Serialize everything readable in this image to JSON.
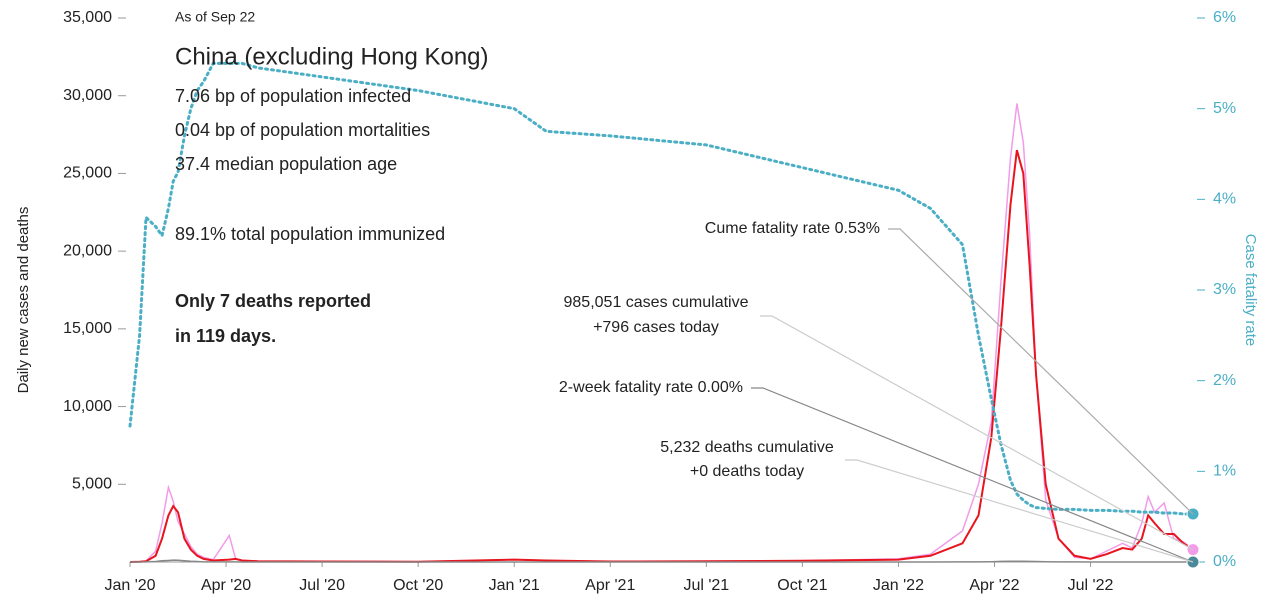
{
  "chart_data": {
    "type": "line",
    "y_label": "Daily new cases and deaths",
    "y2_label": "Case fatality rate",
    "annotations": [
      "As of Sep 22",
      "China (excluding Hong Kong)",
      "7.06 bp of population infected",
      "0.04 bp of population mortalities",
      "37.4 median population age",
      "89.1% total population immunized",
      "Only 7 deaths reported",
      "in 119 days."
    ],
    "callouts": [
      "Cume fatality rate 0.53%",
      "985,051 cases cumulative",
      "+796 cases today",
      "2-week fatality rate 0.00%",
      "5,232 deaths cumulative",
      "+0 deaths today"
    ],
    "xlim": [
      0,
      33.2
    ],
    "xticks": [
      {
        "value": 0,
        "label": "Jan '20"
      },
      {
        "value": 3,
        "label": "Apr '20"
      },
      {
        "value": 6,
        "label": "Jul '20"
      },
      {
        "value": 9,
        "label": "Oct '20"
      },
      {
        "value": 12,
        "label": "Jan '21"
      },
      {
        "value": 15,
        "label": "Apr '21"
      },
      {
        "value": 18,
        "label": "Jul '21"
      },
      {
        "value": 21,
        "label": "Oct '21"
      },
      {
        "value": 24,
        "label": "Jan '22"
      },
      {
        "value": 27,
        "label": "Apr '22"
      },
      {
        "value": 30,
        "label": "Jul '22"
      }
    ],
    "ylim": [
      0,
      35000
    ],
    "yticks": [
      {
        "value": 5000,
        "label": "5,000"
      },
      {
        "value": 10000,
        "label": "10,000"
      },
      {
        "value": 15000,
        "label": "15,000"
      },
      {
        "value": 20000,
        "label": "20,000"
      },
      {
        "value": 25000,
        "label": "25,000"
      },
      {
        "value": 30000,
        "label": "30,000"
      },
      {
        "value": 35000,
        "label": "35,000"
      }
    ],
    "y2lim": [
      0,
      6
    ],
    "y2ticks": [
      {
        "value": 0,
        "label": "0%"
      },
      {
        "value": 1,
        "label": "1%"
      },
      {
        "value": 2,
        "label": "2%"
      },
      {
        "value": 3,
        "label": "3%"
      },
      {
        "value": 4,
        "label": "4%"
      },
      {
        "value": 5,
        "label": "5%"
      },
      {
        "value": 6,
        "label": "6%"
      }
    ],
    "x": [
      0,
      0.3,
      0.5,
      0.8,
      1.0,
      1.2,
      1.35,
      1.5,
      1.7,
      1.9,
      2.1,
      2.3,
      2.6,
      3.1,
      3.3,
      3.5,
      4,
      6,
      9,
      12,
      13,
      15,
      18,
      21,
      24,
      25,
      26,
      26.5,
      26.9,
      27.2,
      27.5,
      27.7,
      27.9,
      28.1,
      28.3,
      28.6,
      29,
      29.5,
      30,
      30.5,
      31,
      31.3,
      31.6,
      31.8,
      32,
      32.3,
      32.6,
      32.9,
      33.2
    ],
    "series": [
      {
        "color": "#f29be8",
        "values": [
          0,
          20,
          60,
          700,
          2500,
          4800,
          3900,
          2600,
          1800,
          1000,
          500,
          300,
          150,
          1700,
          200,
          100,
          50,
          30,
          20,
          150,
          100,
          30,
          50,
          80,
          200,
          500,
          2000,
          5000,
          9000,
          18000,
          26000,
          29500,
          27000,
          21000,
          12000,
          4000,
          1500,
          300,
          200,
          700,
          1200,
          900,
          2500,
          4200,
          3200,
          3800,
          1500,
          1300,
          796
        ]
      },
      {
        "color": "#e8141e",
        "values": [
          0,
          20,
          50,
          400,
          1500,
          3000,
          3600,
          3200,
          1500,
          800,
          400,
          200,
          100,
          150,
          200,
          100,
          50,
          30,
          20,
          150,
          100,
          30,
          50,
          80,
          150,
          400,
          1200,
          3000,
          8000,
          15000,
          23000,
          26500,
          25000,
          19000,
          12000,
          5000,
          1500,
          400,
          200,
          500,
          900,
          800,
          1500,
          3000,
          2500,
          1800,
          1800,
          1200,
          796
        ]
      },
      {
        "color": "#888888",
        "values": [
          0,
          0,
          5,
          30,
          80,
          100,
          120,
          110,
          80,
          50,
          30,
          10,
          5,
          5,
          5,
          2,
          1,
          1,
          1,
          1,
          1,
          1,
          1,
          1,
          1,
          1,
          5,
          10,
          20,
          40,
          50,
          50,
          45,
          40,
          30,
          20,
          10,
          5,
          1,
          1,
          1,
          1,
          1,
          1,
          1,
          1,
          0,
          0,
          0
        ]
      },
      {
        "color": "#4aaec4",
        "axis": "y2",
        "values": [
          1.5,
          2.5,
          3.8,
          3.7,
          3.6,
          3.9,
          4.2,
          4.3,
          4.7,
          5.0,
          5.2,
          5.3,
          5.5,
          5.5,
          5.5,
          5.5,
          5.45,
          5.35,
          5.2,
          5.0,
          4.75,
          4.7,
          4.6,
          4.35,
          4.1,
          3.9,
          3.5,
          2.5,
          1.8,
          1.3,
          0.9,
          0.75,
          0.68,
          0.63,
          0.6,
          0.59,
          0.58,
          0.58,
          0.57,
          0.57,
          0.56,
          0.56,
          0.55,
          0.55,
          0.55,
          0.54,
          0.54,
          0.53,
          0.53
        ]
      }
    ]
  }
}
